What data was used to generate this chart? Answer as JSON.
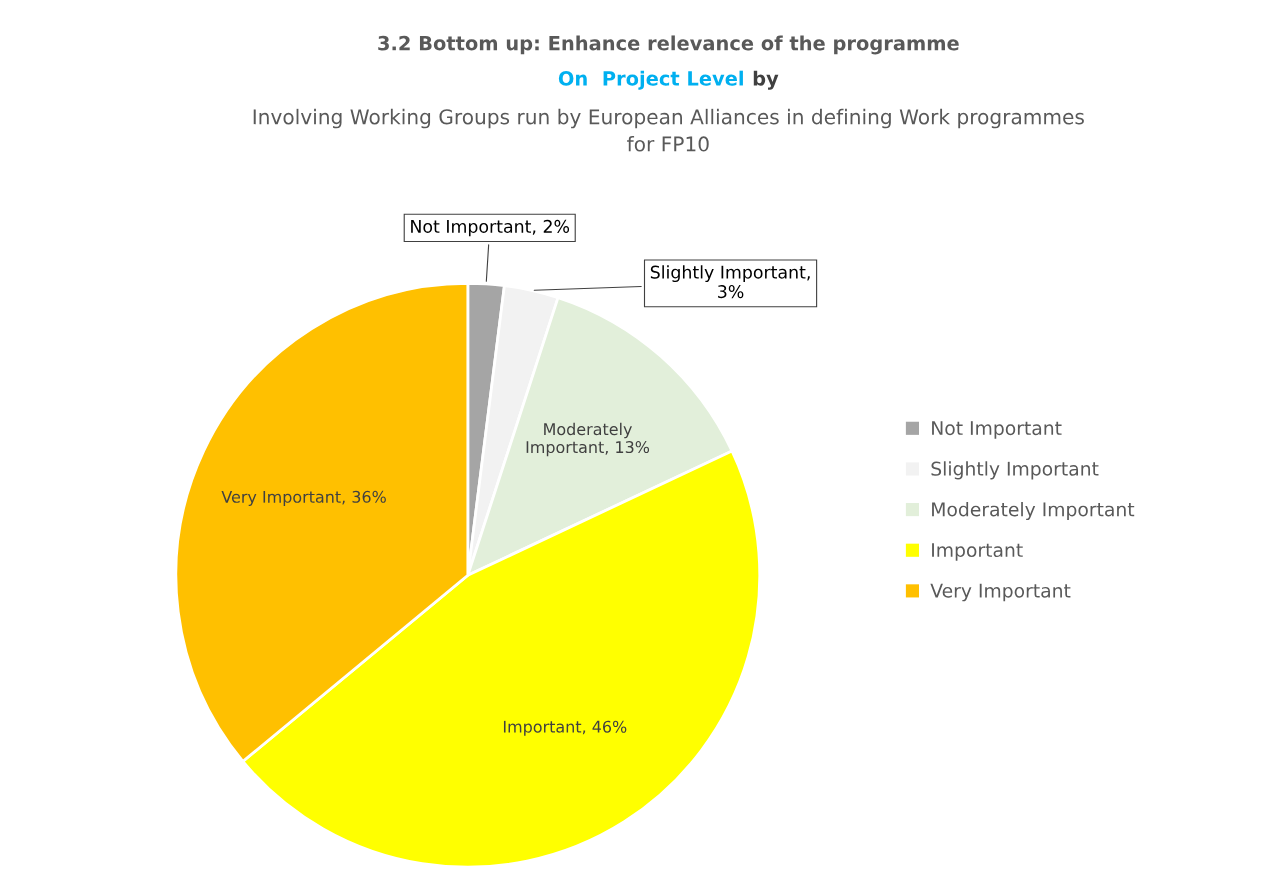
{
  "chart_data": {
    "type": "pie",
    "title": "3.2 Bottom up: Enhance relevance of the programme",
    "subtitle": "On  Project Level by",
    "annotations": [
      "Involving Working Groups run by European Alliances in defining Work programmes\nfor FP10"
    ],
    "categories": [
      "Not Important",
      "Slightly Important",
      "Moderately Important",
      "Important",
      "Very Important"
    ],
    "values": [
      2,
      3,
      13,
      46,
      36
    ],
    "colors": [
      "#a5a5a5",
      "#f2f2f2",
      "#e2efda",
      "#ffff00",
      "#ffc000"
    ],
    "value_labels": [
      "Not Important, 2%",
      "Slightly Important,\n3%",
      "Moderately\nImportant, 13%",
      "Important, 46%",
      "Very Important, 36%"
    ],
    "legend": "right"
  }
}
